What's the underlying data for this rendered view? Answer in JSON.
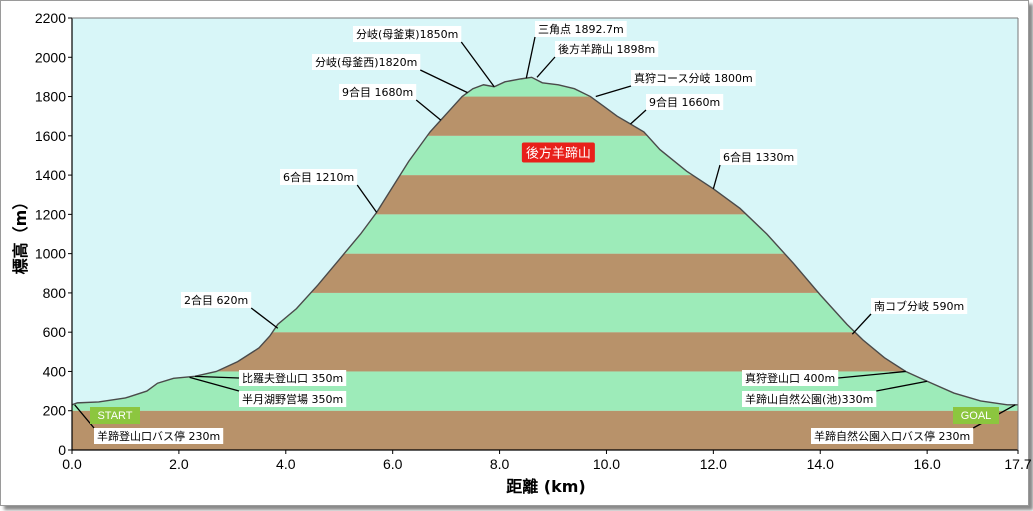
{
  "chart_data": {
    "type": "area",
    "xlabel": "距離 (km)",
    "ylabel": "標高（m）",
    "xlim": [
      0,
      17.7
    ],
    "ylim": [
      0,
      2200
    ],
    "x_ticks": [
      "0.0",
      "2.0",
      "4.0",
      "6.0",
      "8.0",
      "10.0",
      "12.0",
      "14.0",
      "16.0",
      "17.7"
    ],
    "x_tick_values": [
      0,
      2,
      4,
      6,
      8,
      10,
      12,
      14,
      16,
      17.7
    ],
    "y_ticks": [
      0,
      200,
      400,
      600,
      800,
      1000,
      1200,
      1400,
      1600,
      1800,
      2000,
      2200
    ],
    "band_colors": [
      "#b8926a",
      "#9debb9"
    ],
    "background_color": "#d8f6f8",
    "profile": {
      "x": [
        0,
        0.1,
        0.5,
        1.0,
        1.4,
        1.6,
        1.9,
        2.3,
        2.7,
        3.1,
        3.5,
        3.7,
        3.85,
        4.2,
        4.6,
        5.0,
        5.4,
        5.7,
        6.0,
        6.3,
        6.7,
        6.9,
        7.1,
        7.3,
        7.5,
        7.7,
        7.9,
        8.1,
        8.4,
        8.6,
        8.8,
        9.1,
        9.4,
        9.7,
        9.95,
        10.2,
        10.45,
        10.7,
        11.0,
        11.5,
        12.0,
        12.5,
        13.0,
        13.5,
        14.0,
        14.5,
        14.8,
        15.2,
        15.6,
        16.0,
        16.5,
        17.0,
        17.5,
        17.7
      ],
      "y": [
        230,
        240,
        245,
        265,
        300,
        340,
        365,
        375,
        400,
        450,
        520,
        580,
        640,
        720,
        840,
        970,
        1100,
        1210,
        1340,
        1470,
        1620,
        1680,
        1740,
        1800,
        1840,
        1860,
        1850,
        1875,
        1890,
        1898,
        1870,
        1860,
        1840,
        1800,
        1750,
        1700,
        1660,
        1620,
        1530,
        1420,
        1330,
        1230,
        1100,
        950,
        790,
        640,
        560,
        470,
        400,
        350,
        290,
        250,
        230,
        230
      ]
    },
    "peak_label": "後方羊蹄山",
    "peak_label_x": 9.1,
    "peak_label_y": 1515,
    "annotations": [
      {
        "label": "三角点 1892.7m",
        "x": 8.5,
        "y": 1893
      },
      {
        "label": "後方羊蹄山 1898m",
        "x": 8.7,
        "y": 1898
      },
      {
        "label": "分岐(母釜東)1850m",
        "x": 7.9,
        "y": 1850
      },
      {
        "label": "分岐(母釜西)1820m",
        "x": 7.4,
        "y": 1820
      },
      {
        "label": "真狩コース分岐 1800m",
        "x": 9.8,
        "y": 1800
      },
      {
        "label": "9合目 1680m",
        "x": 6.9,
        "y": 1680
      },
      {
        "label": "9合目 1660m",
        "x": 10.45,
        "y": 1660
      },
      {
        "label": "6合目 1210m",
        "x": 5.7,
        "y": 1210
      },
      {
        "label": "6合目 1330m",
        "x": 12.0,
        "y": 1330
      },
      {
        "label": "2合目 620m",
        "x": 3.85,
        "y": 620
      },
      {
        "label": "南コブ分岐 590m",
        "x": 14.6,
        "y": 590
      },
      {
        "label": "比羅夫登山口 350m",
        "x": 2.3,
        "y": 375
      },
      {
        "label": "半月湖野営場 350m",
        "x": 2.2,
        "y": 370
      },
      {
        "label": "真狩登山口 400m",
        "x": 15.6,
        "y": 400
      },
      {
        "label": "羊蹄山自然公園(池)330m",
        "x": 16.0,
        "y": 350
      },
      {
        "label": "羊蹄登山口バス停 230m",
        "x": 0.05,
        "y": 230
      },
      {
        "label": "羊蹄自然公園入口バス停 230m",
        "x": 17.65,
        "y": 230
      }
    ],
    "start_label": "START",
    "goal_label": "GOAL",
    "badge_color": "#8cc63f",
    "peak_badge_color": "#e8201a"
  }
}
